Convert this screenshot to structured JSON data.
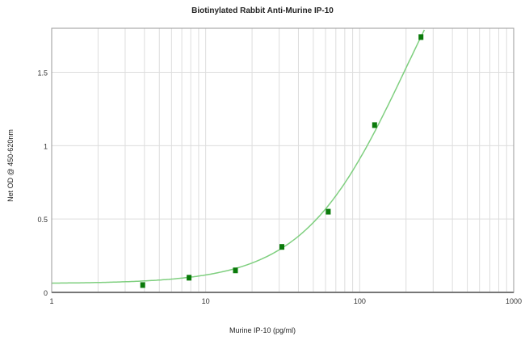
{
  "chart_data": {
    "type": "scatter",
    "title": "Biotinylated Rabbit Anti-Murine IP-10",
    "xlabel": "Murine IP-10 (pg/ml)",
    "ylabel": "Net OD @ 450-620nm",
    "x_scale": "log",
    "xlim": [
      1,
      1000
    ],
    "ylim": [
      0,
      1.8
    ],
    "x_ticks": [
      "1",
      "10",
      "100",
      "1000"
    ],
    "y_ticks": [
      "0",
      "0.5",
      "1",
      "1.5"
    ],
    "grid": true,
    "fit_curve": "4-parameter logistic",
    "series": [
      {
        "x": [
          3.9,
          7.8,
          15.6,
          31.25,
          62.5,
          125,
          250
        ],
        "y": [
          0.05,
          0.1,
          0.15,
          0.31,
          0.55,
          1.14,
          1.74
        ]
      }
    ],
    "colors": {
      "points": "#0a7a0a",
      "curve": "#7fcf7f",
      "grid": "#dddddd",
      "axis": "#777777"
    }
  }
}
